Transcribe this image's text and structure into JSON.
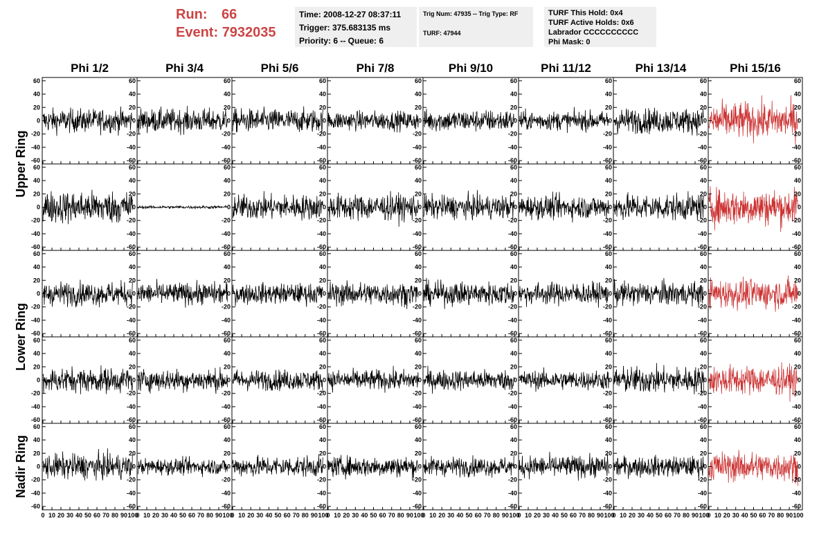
{
  "run": {
    "run_label": "Run:",
    "run_value": "66",
    "event_label": "Event:",
    "event_value": "7932035"
  },
  "info_box_1": {
    "line1": "Time: 2008-12-27 08:37:11",
    "line2": "Trigger: 375.683135 ms",
    "line3": "Priority: 6 -- Queue: 6"
  },
  "info_box_2": {
    "line1": "Trig Num: 47935 -- Trig Type: RF",
    "line2": "TURF: 47944"
  },
  "info_box_3": {
    "line1": "TURF This Hold: 0x4",
    "line2": "TURF Active Holds: 0x6",
    "line3": "Labrador CCCCCCCCCC",
    "line4": "Phi Mask: 0"
  },
  "colors": {
    "normal_trace": "#000000",
    "highlight_trace": "#cc3333",
    "header_text": "#cc4444"
  },
  "chart_data": {
    "type": "line",
    "columns": [
      "Phi 1/2",
      "Phi 3/4",
      "Phi 5/6",
      "Phi 7/8",
      "Phi 9/10",
      "Phi 11/12",
      "Phi 13/14",
      "Phi 15/16"
    ],
    "rows": [
      "Upper Ring",
      "Lower Ring",
      "Nadir Ring"
    ],
    "panel_rows": 5,
    "row_labels_span": [
      [
        0,
        1
      ],
      [
        2,
        3
      ],
      [
        4,
        4
      ]
    ],
    "ylim": [
      -65,
      65
    ],
    "xlim": [
      0,
      100
    ],
    "y_ticks": [
      "60",
      "40",
      "20",
      "0",
      "-20",
      "-40",
      "-60"
    ],
    "y_tick_values": [
      60,
      40,
      20,
      0,
      -20,
      -40,
      -60
    ],
    "x_ticks": [
      "0",
      "10",
      "20",
      "30",
      "40",
      "50",
      "60",
      "70",
      "80",
      "90",
      "100"
    ],
    "x_tick_values": [
      0,
      10,
      20,
      30,
      40,
      50,
      60,
      70,
      80,
      90,
      100
    ],
    "highlight_column": 7,
    "amplitudes": [
      [
        16,
        16,
        16,
        13,
        15,
        13,
        17,
        25
      ],
      [
        22,
        2,
        17,
        18,
        16,
        16,
        18,
        25
      ],
      [
        16,
        15,
        14,
        16,
        16,
        15,
        16,
        20
      ],
      [
        17,
        15,
        14,
        14,
        14,
        13,
        18,
        20
      ],
      [
        17,
        11,
        14,
        14,
        13,
        15,
        14,
        20
      ]
    ],
    "samples_per_trace": 260
  }
}
